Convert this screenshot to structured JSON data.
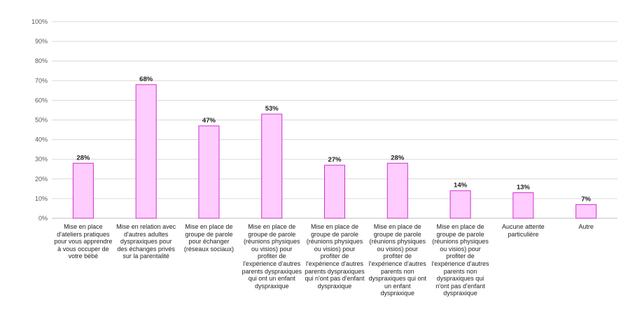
{
  "chart_data": {
    "type": "bar",
    "categories": [
      "Mise en place\nd'ateliers pratiques\npour vous apprendre\nà vous occuper de\nvotre bébé",
      "Mise en relation avec\nd'autres adultes\ndyspraxiques pour\ndes échanges privés\nsur la parentalité",
      "Mise en place de\ngroupe de parole\npour échanger\n(réseaux sociaux)",
      "Mise en place de\ngroupe de parole\n(réunions physiques\nou visios) pour\nprofiter de\nl'expérience d'autres\nparents dyspraxiques\nqui ont un enfant\ndyspraxique",
      "Mise en place de\ngroupe de parole\n(réunions physiques\nou visios) pour\nprofiter de\nl'expérience d'autres\nparents dyspraxiques\nqui n'ont pas d'enfant\ndyspraxique",
      "Mise en place de\ngroupe de parole\n(réunions physiques\nou visios) pour\nprofiter de\nl'expérience d'autres\nparents non\ndyspraxiques qui ont\nun enfant\ndyspraxique",
      "Mise en place de\ngroupe de parole\n(réunions physiques\nou visios) pour\nprofiter de\nl'expérience d'autres\nparents non\ndyspraxiques qui\nn'ont pas d'enfant\ndyspraxique",
      "Aucune attente\nparticulière",
      "Autre"
    ],
    "values": [
      28,
      68,
      47,
      53,
      27,
      28,
      14,
      13,
      7
    ],
    "data_labels": [
      "28%",
      "68%",
      "47%",
      "53%",
      "27%",
      "28%",
      "14%",
      "13%",
      "7%"
    ],
    "ylim": [
      0,
      100
    ],
    "yticks": [
      "0%",
      "10%",
      "20%",
      "30%",
      "40%",
      "50%",
      "60%",
      "70%",
      "80%",
      "90%",
      "100%"
    ],
    "grid": true,
    "bar_fill": "#FFCCFF",
    "bar_stroke": "#CC33CC",
    "grid_color": "#D9D9D9"
  }
}
